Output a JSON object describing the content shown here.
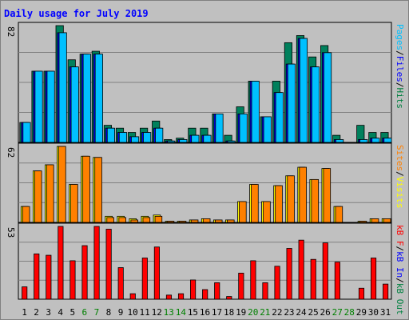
{
  "chart_data": {
    "type": "bar",
    "title": "Daily usage for July 2019",
    "categories": [
      "1",
      "2",
      "3",
      "4",
      "5",
      "6",
      "7",
      "8",
      "9",
      "10",
      "11",
      "12",
      "13",
      "14",
      "15",
      "16",
      "17",
      "18",
      "19",
      "20",
      "21",
      "22",
      "23",
      "24",
      "25",
      "26",
      "27",
      "28",
      "29",
      "30",
      "31"
    ],
    "weekend_days": [
      "6",
      "7",
      "13",
      "14",
      "20",
      "21",
      "27",
      "28"
    ],
    "grid": true,
    "legend_placement": "right",
    "panels": [
      {
        "id": "hits",
        "max_label": "82",
        "ylim": [
          0,
          82
        ],
        "axis_label_parts": [
          {
            "text": "Pages",
            "color": "#00c0ff"
          },
          {
            "text": "/",
            "color": "#000000"
          },
          {
            "text": "Files",
            "color": "#0000ff"
          },
          {
            "text": "/",
            "color": "#000000"
          },
          {
            "text": "Hits",
            "color": "#008040"
          }
        ],
        "series": [
          {
            "name": "Hits",
            "color": "#00805c",
            "values": [
              14,
              50,
              50,
              82,
              58,
              62,
              64,
              12,
              10,
              7,
              10,
              15,
              2,
              3,
              10,
              10,
              20,
              5,
              25,
              43,
              18,
              43,
              70,
              75,
              60,
              68,
              5,
              0,
              12,
              7,
              7
            ]
          },
          {
            "name": "Files",
            "color": "#0000ff",
            "values": [
              14,
              50,
              50,
              77,
              53,
              62,
              62,
              10,
              7,
              4,
              7,
              10,
              1,
              2,
              5,
              5,
              20,
              1,
              20,
              43,
              18,
              35,
              55,
              73,
              53,
              63,
              2,
              0,
              2,
              3,
              3
            ]
          },
          {
            "name": "Pages",
            "color": "#00c0ff",
            "values": [
              14,
              50,
              50,
              77,
              53,
              62,
              62,
              10,
              7,
              4,
              7,
              10,
              1,
              2,
              5,
              5,
              20,
              1,
              20,
              43,
              18,
              35,
              55,
              73,
              53,
              63,
              2,
              0,
              2,
              3,
              3
            ]
          }
        ]
      },
      {
        "id": "visits",
        "max_label": "62",
        "ylim": [
          0,
          62
        ],
        "axis_label_parts": [
          {
            "text": "Sites",
            "color": "#ff8000"
          },
          {
            "text": "/",
            "color": "#000000"
          },
          {
            "text": "Visits",
            "color": "#ffff00"
          }
        ],
        "series": [
          {
            "name": "Visits",
            "color": "#ffff00",
            "values": [
              13,
              42,
              47,
              62,
              31,
              54,
              53,
              5,
              5,
              3,
              5,
              6,
              1,
              1,
              2,
              3,
              2,
              2,
              17,
              31,
              17,
              30,
              38,
              45,
              35,
              44,
              13,
              0,
              1,
              3,
              3
            ]
          },
          {
            "name": "Sites",
            "color": "#ff8000",
            "values": [
              13,
              42,
              47,
              62,
              31,
              54,
              53,
              4,
              4,
              2,
              4,
              5,
              1,
              1,
              2,
              3,
              2,
              2,
              17,
              31,
              17,
              30,
              38,
              45,
              35,
              44,
              13,
              0,
              1,
              3,
              3
            ]
          }
        ]
      },
      {
        "id": "kbytes",
        "max_label": "53",
        "ylim": [
          0,
          53
        ],
        "axis_label_parts": [
          {
            "text": "kB F",
            "color": "#ff0000"
          },
          {
            "text": "/",
            "color": "#000000"
          },
          {
            "text": "kB In",
            "color": "#0000ff"
          },
          {
            "text": "/",
            "color": "#000000"
          },
          {
            "text": "kB Out",
            "color": "#008040"
          }
        ],
        "series": [
          {
            "name": "kB F",
            "color": "#ff0000",
            "values": [
              9,
              33,
              32,
              53,
              28,
              39,
              53,
              51,
              23,
              4,
              30,
              38,
              3,
              4,
              14,
              7,
              12,
              2,
              19,
              28,
              12,
              24,
              37,
              43,
              29,
              41,
              27,
              0,
              8,
              30,
              11
            ]
          }
        ]
      }
    ]
  }
}
